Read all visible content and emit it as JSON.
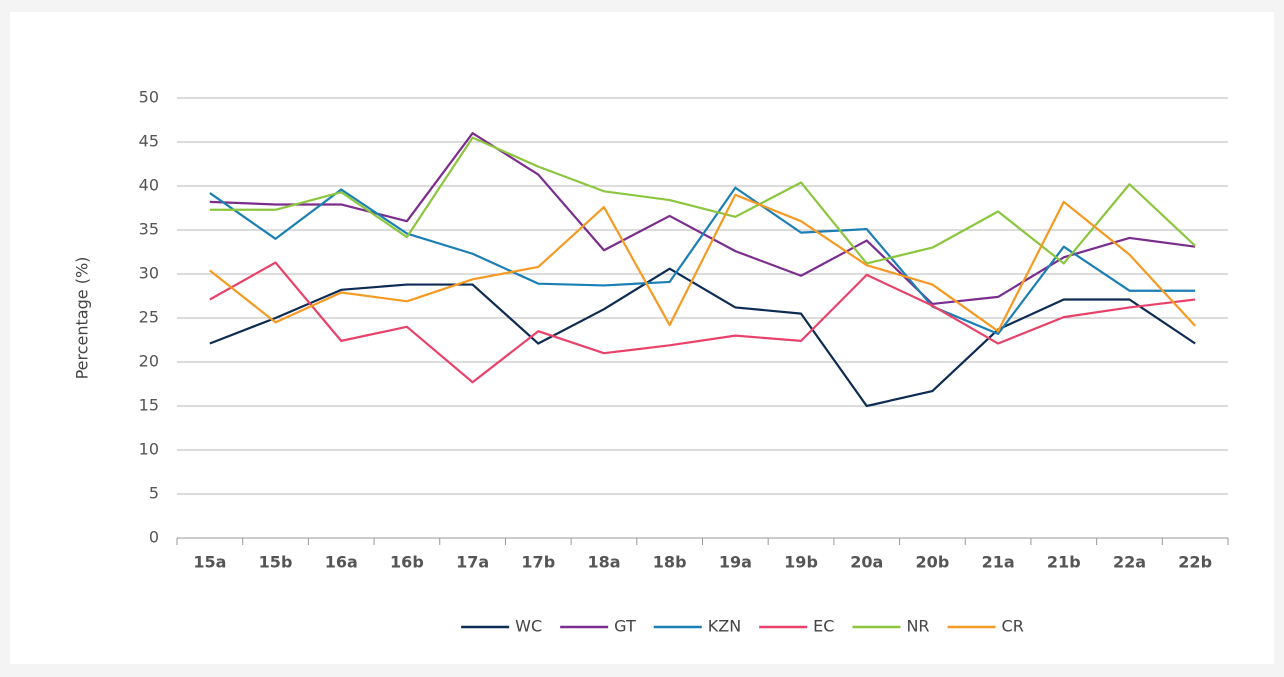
{
  "chart_data": {
    "type": "line",
    "y_label": "Percentage (%)",
    "categories": [
      "15a",
      "15b",
      "16a",
      "16b",
      "17a",
      "17b",
      "18a",
      "18b",
      "19a",
      "19b",
      "20a",
      "20b",
      "21a",
      "21b",
      "22a",
      "22b"
    ],
    "series": [
      {
        "name": "WC",
        "color": "#0d2b53",
        "values": [
          22.1,
          25,
          28.2,
          28.8,
          28.8,
          22.1,
          26,
          30.6,
          26.2,
          25.5,
          15,
          16.7,
          23.7,
          27.1,
          27.1,
          22.1
        ]
      },
      {
        "name": "GT",
        "color": "#7b2d8e",
        "values": [
          38.2,
          37.9,
          37.9,
          36,
          46,
          41.3,
          32.7,
          36.6,
          32.6,
          29.8,
          33.8,
          26.6,
          27.4,
          31.9,
          34.1,
          33.1
        ]
      },
      {
        "name": "KZN",
        "color": "#1b7fb4",
        "values": [
          39.2,
          34,
          39.6,
          34.6,
          32.3,
          28.9,
          28.7,
          29.1,
          39.8,
          34.7,
          35.1,
          26.3,
          23.2,
          33.1,
          28.1,
          28.1
        ]
      },
      {
        "name": "EC",
        "color": "#e8426a",
        "values": [
          27.1,
          31.3,
          22.4,
          24,
          17.7,
          23.5,
          21,
          21.9,
          23,
          22.4,
          29.9,
          26.4,
          22.1,
          25.1,
          26.2,
          27.1
        ]
      },
      {
        "name": "NR",
        "color": "#8cc63f",
        "values": [
          37.3,
          37.3,
          39.3,
          34.2,
          45.5,
          42.2,
          39.4,
          38.4,
          36.5,
          40.4,
          31.2,
          33,
          37.1,
          31.2,
          40.2,
          33.2
        ]
      },
      {
        "name": "CR",
        "color": "#f59a23",
        "values": [
          30.4,
          24.5,
          27.9,
          26.9,
          29.4,
          30.8,
          37.6,
          24.2,
          39,
          36,
          31,
          28.8,
          23.5,
          38.2,
          32.2,
          24.1
        ]
      }
    ],
    "ylim": [
      0,
      50
    ],
    "yticks": [
      0,
      5,
      10,
      15,
      20,
      25,
      30,
      35,
      40,
      45,
      50
    ],
    "grid": true,
    "legend": "bottom"
  }
}
